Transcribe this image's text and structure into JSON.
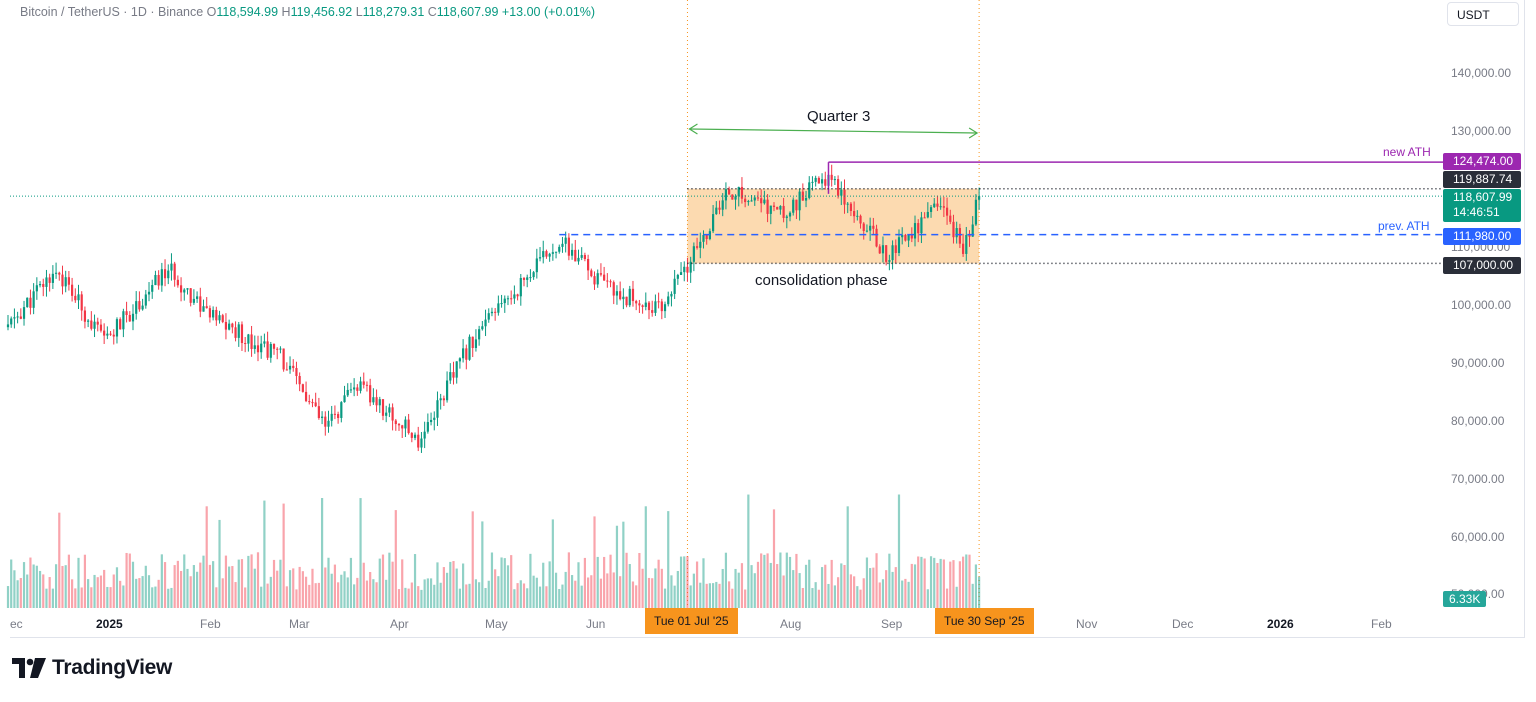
{
  "header": {
    "symbol": "Bitcoin / TetherUS · 1D · Binance",
    "open_label": "O",
    "open": "118,594.99",
    "high_label": "H",
    "high": "119,456.92",
    "low_label": "L",
    "low": "118,279.31",
    "close_label": "C",
    "close": "118,607.99",
    "change": "+13.00 (+0.01%)"
  },
  "currency": "USDT",
  "brand": "TradingView",
  "colors": {
    "up": "#089981",
    "down": "#f23645",
    "new_ath": "#9c27b0",
    "prev_ath": "#2962ff",
    "quarter_arrow": "#4caf50",
    "highlight": "#f7941d"
  },
  "price_axis": [
    "140,000.00",
    "130,000.00",
    "100,000.00",
    "90,000.00",
    "80,000.00",
    "70,000.00",
    "60,000.00",
    "50,000.00",
    "110,000.00"
  ],
  "time_axis": [
    "ec",
    "2025",
    "Feb",
    "Mar",
    "Apr",
    "May",
    "Jun",
    "Aug",
    "Sep",
    "Nov",
    "Dec",
    "2026",
    "Feb"
  ],
  "date_tags": {
    "start": "Tue 01 Jul '25",
    "end": "Tue 30 Sep '25"
  },
  "price_tags": {
    "new_ath": "124,474.00",
    "box_top": "119,887.74",
    "current_price": "118,607.99",
    "countdown": "14:46:51",
    "prev_ath": "111,980.00",
    "box_bottom": "107,000.00"
  },
  "annotations": {
    "new_ath": "new ATH",
    "prev_ath": "prev. ATH",
    "quarter": "Quarter 3",
    "consolidation": "consolidation phase"
  },
  "volume_label": "6.33K",
  "chart_data": {
    "type": "candlestick",
    "symbol": "BTC/USDT",
    "interval": "1D",
    "y_axis": {
      "scale": "linear",
      "ylim": [
        50000,
        145000
      ],
      "ticks": [
        50000,
        60000,
        70000,
        80000,
        90000,
        100000,
        110000,
        120000,
        130000,
        140000
      ]
    },
    "x_axis": {
      "start": "2024-12-01",
      "end": "2026-02-28",
      "ticks": [
        "Dec",
        "2025",
        "Feb",
        "Mar",
        "Apr",
        "May",
        "Jun",
        "Jul",
        "Aug",
        "Sep",
        "Oct",
        "Nov",
        "Dec",
        "2026",
        "Feb"
      ]
    },
    "price_path": [
      [
        "2024-12-01",
        96000
      ],
      [
        "2024-12-16",
        106000
      ],
      [
        "2024-12-31",
        93500
      ],
      [
        "2025-01-20",
        106000
      ],
      [
        "2025-02-03",
        97500
      ],
      [
        "2025-02-24",
        91000
      ],
      [
        "2025-03-10",
        78500
      ],
      [
        "2025-03-20",
        86000
      ],
      [
        "2025-04-08",
        76500
      ],
      [
        "2025-04-25",
        94000
      ],
      [
        "2025-05-22",
        111000
      ],
      [
        "2025-06-05",
        103000
      ],
      [
        "2025-06-22",
        99000
      ],
      [
        "2025-07-01",
        106500
      ],
      [
        "2025-07-14",
        119500
      ],
      [
        "2025-07-31",
        115500
      ],
      [
        "2025-08-14",
        122500
      ],
      [
        "2025-09-01",
        108500
      ],
      [
        "2025-09-18",
        117000
      ],
      [
        "2025-09-25",
        109500
      ],
      [
        "2025-09-30",
        118608
      ]
    ],
    "levels": [
      {
        "name": "new ATH",
        "value": 124474
      },
      {
        "name": "prev. ATH",
        "value": 111980
      }
    ],
    "consolidation_box": {
      "label": "consolidation phase",
      "x": [
        "2025-07-01",
        "2025-09-30"
      ],
      "y": [
        107000,
        119887.74
      ]
    },
    "last_close": 118607.99,
    "last_volume": "6.33K"
  }
}
